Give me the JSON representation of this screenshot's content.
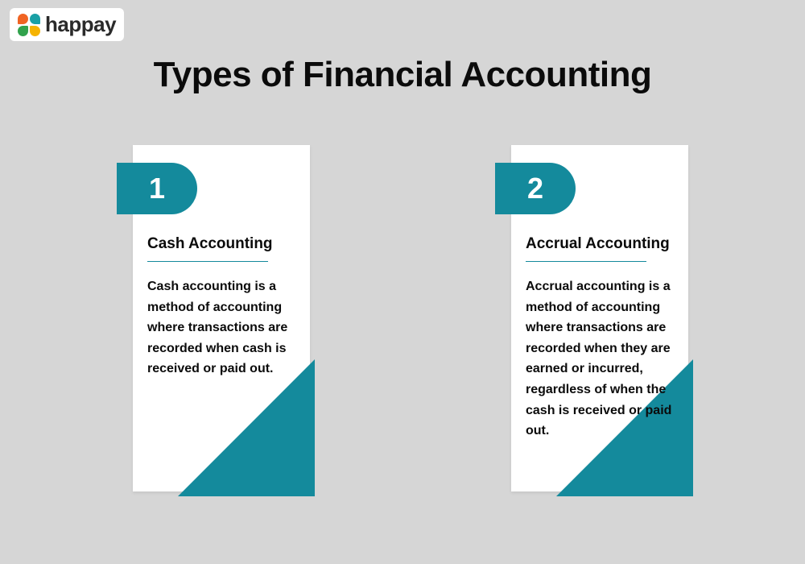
{
  "logo": {
    "text": "happay",
    "dot_colors": [
      "#f06423",
      "#1aa0a5",
      "#31a24c",
      "#f5b301"
    ]
  },
  "title": "Types of Financial Accounting",
  "colors": {
    "background": "#d6d6d6",
    "card_bg": "#ffffff",
    "accent": "#148a9c",
    "text": "#0b0b0b",
    "badge_text": "#ffffff",
    "corner_accent_1": "#e07a2e",
    "corner_accent_2": "#2a7d3d"
  },
  "cards": [
    {
      "number": "1",
      "heading": "Cash Accounting",
      "body": "Cash accounting is a method of accounting where transactions are recorded when cash is received or paid out.",
      "triangle_size": 170
    },
    {
      "number": "2",
      "heading": "Accrual Accounting",
      "body": "Accrual accounting is a method of accounting where transactions are recorded when they are earned or incurred, regardless of when the cash is received or paid out.",
      "triangle_size": 170
    }
  ],
  "typography": {
    "title_fontsize": 44,
    "title_weight": 800,
    "heading_fontsize": 19,
    "body_fontsize": 16,
    "badge_fontsize": 36
  }
}
